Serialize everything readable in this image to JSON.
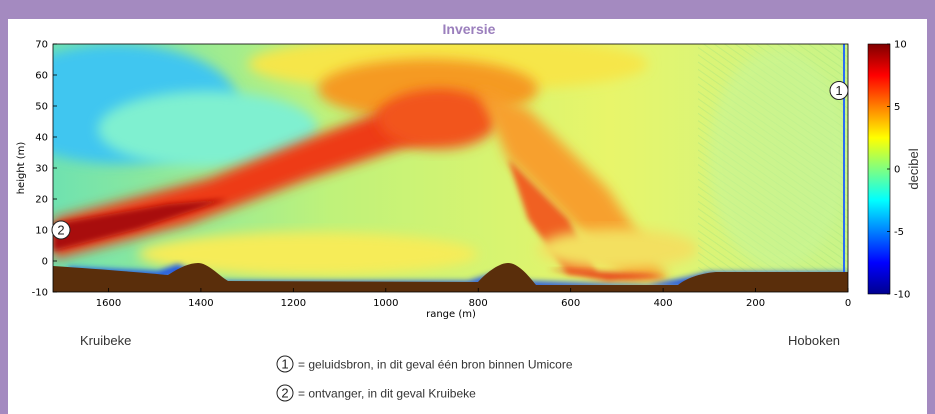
{
  "title": "Inversie",
  "chart_data": {
    "type": "heatmap",
    "title": "Inversie",
    "xlabel": "range (m)",
    "ylabel": "height (m)",
    "xlim": [
      1720,
      0
    ],
    "ylim": [
      -10,
      70
    ],
    "x_ticks": [
      1600,
      1400,
      1200,
      1000,
      800,
      600,
      400,
      200,
      0
    ],
    "y_ticks": [
      70,
      60,
      50,
      40,
      30,
      20,
      10,
      0,
      -10
    ],
    "colorbar": {
      "label": "decibel",
      "range": [
        -10,
        10
      ],
      "ticks": [
        10,
        5,
        0,
        -5,
        -10
      ]
    },
    "terrain_color": "#5a2e0b",
    "places": {
      "left": "Kruibeke",
      "right": "Hoboken"
    },
    "markers": [
      {
        "id": "1",
        "range": 0,
        "height": 55
      },
      {
        "id": "2",
        "range": 1705,
        "height": 10
      }
    ]
  },
  "legend": [
    {
      "num": "1",
      "text": "= geluidsbron, in dit geval één bron binnen Umicore"
    },
    {
      "num": "2",
      "text": "= ontvanger, in dit geval Kruibeke"
    }
  ]
}
